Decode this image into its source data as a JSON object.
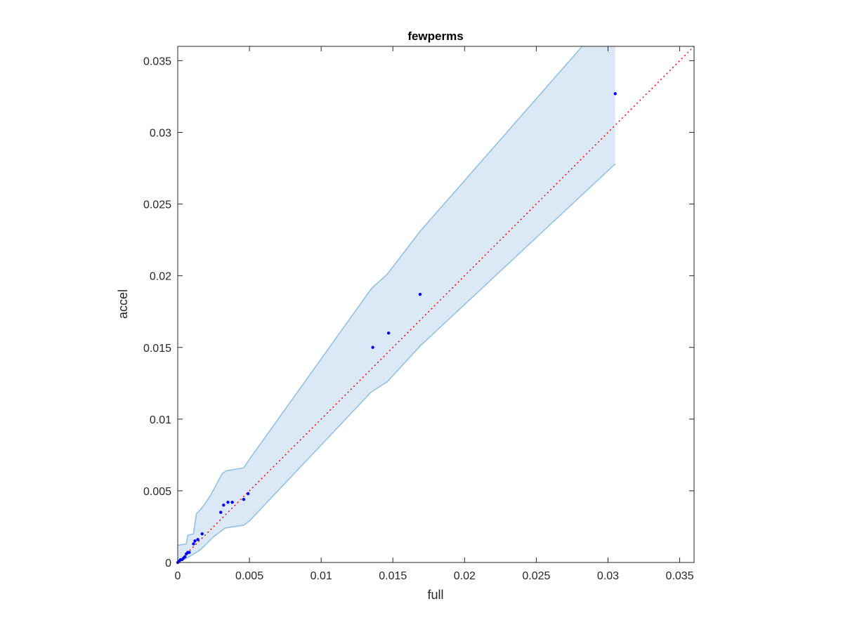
{
  "chart_data": {
    "type": "scatter",
    "title": "fewperms",
    "xlabel": "full",
    "ylabel": "accel",
    "xlim": [
      0,
      0.036
    ],
    "ylim": [
      0,
      0.036
    ],
    "x_ticks": [
      "0",
      "0.005",
      "0.01",
      "0.015",
      "0.02",
      "0.025",
      "0.03",
      "0.035"
    ],
    "y_ticks": [
      "0",
      "0.005",
      "0.01",
      "0.015",
      "0.02",
      "0.025",
      "0.03",
      "0.035"
    ],
    "grid": false,
    "reference_line": {
      "style": "dotted",
      "color": "#ff0000",
      "from": [
        0,
        0
      ],
      "to": [
        0.036,
        0.036
      ]
    },
    "band": {
      "fill_color": "#dae9f5",
      "edge_color": "#8fbfdf",
      "upper": [
        [
          0,
          0.0012
        ],
        [
          0.0006,
          0.0013
        ],
        [
          0.0007,
          0.0019
        ],
        [
          0.0011,
          0.002
        ],
        [
          0.0013,
          0.0034
        ],
        [
          0.0016,
          0.0037
        ],
        [
          0.0019,
          0.0041
        ],
        [
          0.0023,
          0.0047
        ],
        [
          0.0031,
          0.0062
        ],
        [
          0.0034,
          0.0064
        ],
        [
          0.0046,
          0.0066
        ],
        [
          0.0048,
          0.0069
        ],
        [
          0.005,
          0.0072
        ],
        [
          0.0135,
          0.0191
        ],
        [
          0.0146,
          0.0201
        ],
        [
          0.0169,
          0.0231
        ],
        [
          0.0282,
          0.036
        ]
      ],
      "lower": [
        [
          0,
          0
        ],
        [
          0.0008,
          0.0004
        ],
        [
          0.0016,
          0.0009
        ],
        [
          0.0025,
          0.0018
        ],
        [
          0.0033,
          0.0024
        ],
        [
          0.0046,
          0.0026
        ],
        [
          0.005,
          0.0029
        ],
        [
          0.0135,
          0.0119
        ],
        [
          0.0146,
          0.0126
        ],
        [
          0.0169,
          0.0151
        ],
        [
          0.0305,
          0.0278
        ]
      ],
      "right_x": 0.0305,
      "right_top": 0.036
    },
    "series": [
      {
        "color": "#0000ff",
        "points": [
          [
            0,
            0
          ],
          [
            0.0001,
            0.0001
          ],
          [
            0.0002,
            0.0002
          ],
          [
            0.0003,
            0.0002
          ],
          [
            0.0004,
            0.0003
          ],
          [
            0.0005,
            0.0004
          ],
          [
            0.0006,
            0.0006
          ],
          [
            0.0007,
            0.0007
          ],
          [
            0.0008,
            0.0007
          ],
          [
            0.0011,
            0.0013
          ],
          [
            0.0012,
            0.0015
          ],
          [
            0.0014,
            0.0016
          ],
          [
            0.0017,
            0.002
          ],
          [
            0.003,
            0.0035
          ],
          [
            0.0032,
            0.004
          ],
          [
            0.0035,
            0.0042
          ],
          [
            0.0038,
            0.0042
          ],
          [
            0.0046,
            0.0044
          ],
          [
            0.0049,
            0.0048
          ],
          [
            0.0136,
            0.015
          ],
          [
            0.0147,
            0.016
          ],
          [
            0.0169,
            0.0187
          ],
          [
            0.0305,
            0.0327
          ]
        ]
      }
    ]
  }
}
